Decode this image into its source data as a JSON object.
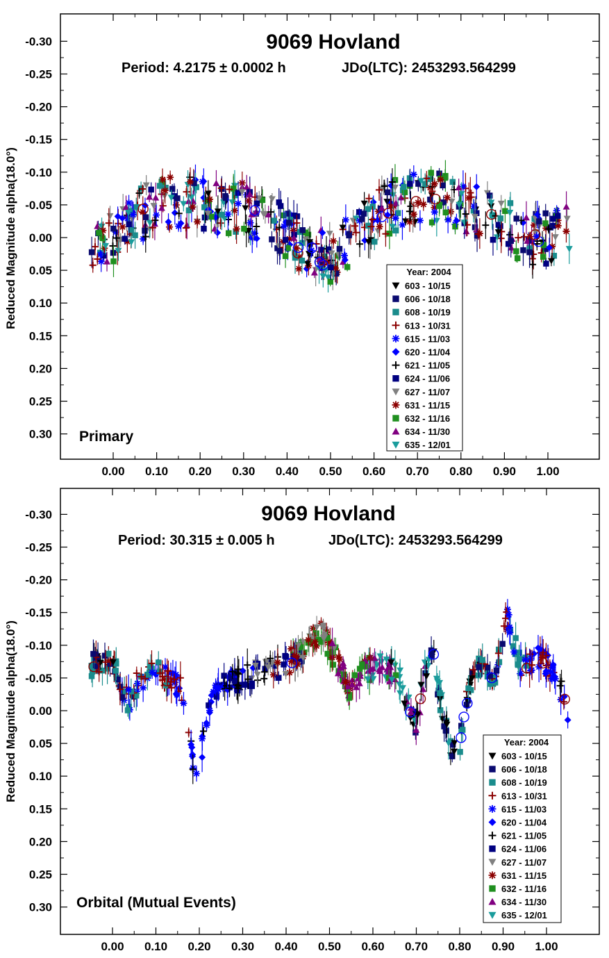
{
  "chart_data": [
    {
      "type": "scatter",
      "title": "9069 Hovland",
      "subtitle_left": "Period: 4.2175 ± 0.0002 h",
      "subtitle_right": "JDo(LTC): 2453293.564299",
      "xlabel": "",
      "ylabel": "Reduced Magnitude alpha(18.0°)",
      "annotation": "Primary",
      "xlim": [
        -0.12,
        1.12
      ],
      "ylim": [
        -0.345,
        0.34
      ],
      "y_inverted": true,
      "grid": false,
      "x_ticks": [
        "0.00",
        "0.10",
        "0.20",
        "0.30",
        "0.40",
        "0.50",
        "0.60",
        "0.70",
        "0.80",
        "0.90",
        "1.00"
      ],
      "y_ticks": [
        "-0.30",
        "-0.25",
        "-0.20",
        "-0.15",
        "-0.10",
        "-0.05",
        "0.00",
        "0.05",
        "0.10",
        "0.15",
        "0.20",
        "0.25",
        "0.30"
      ],
      "legend_placement": "bottom-right",
      "legend_title": "Year: 2004",
      "curve_points": [
        [
          -0.05,
          0.02
        ],
        [
          0.0,
          0.0
        ],
        [
          0.05,
          -0.03
        ],
        [
          0.1,
          -0.05
        ],
        [
          0.15,
          -0.055
        ],
        [
          0.2,
          -0.05
        ],
        [
          0.25,
          -0.045
        ],
        [
          0.3,
          -0.045
        ],
        [
          0.35,
          -0.03
        ],
        [
          0.4,
          -0.005
        ],
        [
          0.45,
          0.02
        ],
        [
          0.5,
          0.03
        ],
        [
          0.55,
          0.005
        ],
        [
          0.6,
          -0.03
        ],
        [
          0.65,
          -0.05
        ],
        [
          0.7,
          -0.06
        ],
        [
          0.75,
          -0.06
        ],
        [
          0.8,
          -0.05
        ],
        [
          0.85,
          -0.04
        ],
        [
          0.9,
          -0.02
        ],
        [
          0.95,
          0.005
        ],
        [
          1.0,
          0.0
        ],
        [
          1.05,
          -0.02
        ]
      ],
      "series": [
        {
          "name": "603 - 10/15",
          "color": "#000000",
          "marker": "tri-down"
        },
        {
          "name": "606 - 10/18",
          "color": "#0a0a70",
          "marker": "square"
        },
        {
          "name": "608 - 10/19",
          "color": "#1a8c8c",
          "marker": "square"
        },
        {
          "name": "613 - 10/31",
          "color": "#8b0000",
          "marker": "plus"
        },
        {
          "name": "615 - 11/03",
          "color": "#0000ff",
          "marker": "asterisk"
        },
        {
          "name": "620 - 11/04",
          "color": "#0000ff",
          "marker": "diamond"
        },
        {
          "name": "621 - 11/05",
          "color": "#000000",
          "marker": "plus"
        },
        {
          "name": "624 - 11/06",
          "color": "#000080",
          "marker": "square"
        },
        {
          "name": "627 - 11/07",
          "color": "#808080",
          "marker": "tri-down"
        },
        {
          "name": "631 - 11/15",
          "color": "#8b0000",
          "marker": "asterisk"
        },
        {
          "name": "632 - 11/16",
          "color": "#1f8f1f",
          "marker": "square"
        },
        {
          "name": "634 - 11/30",
          "color": "#800080",
          "marker": "tri-up"
        },
        {
          "name": "635 - 12/01",
          "color": "#1a9c9c",
          "marker": "tri-down"
        }
      ]
    },
    {
      "type": "scatter",
      "title": "9069 Hovland",
      "subtitle_left": "Period: 30.315 ± 0.005 h",
      "subtitle_right": "JDo(LTC): 2453293.564299",
      "xlabel": "",
      "ylabel": "Reduced Magnitude alpha(18.0°)",
      "annotation": "Orbital (Mutual Events)",
      "xlim": [
        -0.12,
        1.12
      ],
      "ylim": [
        -0.345,
        0.34
      ],
      "y_inverted": true,
      "grid": false,
      "x_ticks": [
        "0.00",
        "0.10",
        "0.20",
        "0.30",
        "0.40",
        "0.50",
        "0.60",
        "0.70",
        "0.80",
        "0.90",
        "1.00"
      ],
      "y_ticks": [
        "-0.30",
        "-0.25",
        "-0.20",
        "-0.15",
        "-0.10",
        "-0.05",
        "0.00",
        "0.05",
        "0.10",
        "0.15",
        "0.20",
        "0.25",
        "0.30"
      ],
      "legend_placement": "bottom-right",
      "legend_title": "Year: 2004",
      "curve_points": [
        [
          -0.05,
          -0.07
        ],
        [
          0.0,
          -0.07
        ],
        [
          0.02,
          -0.04
        ],
        [
          0.04,
          -0.01
        ],
        [
          0.06,
          -0.05
        ],
        [
          0.1,
          -0.06
        ],
        [
          0.14,
          -0.05
        ],
        [
          0.16,
          -0.03
        ],
        [
          0.18,
          0.05
        ],
        [
          0.19,
          0.13
        ],
        [
          0.2,
          0.08
        ],
        [
          0.22,
          0.0
        ],
        [
          0.25,
          -0.04
        ],
        [
          0.3,
          -0.05
        ],
        [
          0.35,
          -0.06
        ],
        [
          0.4,
          -0.07
        ],
        [
          0.45,
          -0.1
        ],
        [
          0.48,
          -0.12
        ],
        [
          0.5,
          -0.1
        ],
        [
          0.55,
          -0.03
        ],
        [
          0.58,
          -0.06
        ],
        [
          0.62,
          -0.07
        ],
        [
          0.66,
          -0.05
        ],
        [
          0.68,
          -0.01
        ],
        [
          0.7,
          0.02
        ],
        [
          0.72,
          -0.06
        ],
        [
          0.74,
          -0.08
        ],
        [
          0.76,
          0.0
        ],
        [
          0.78,
          0.06
        ],
        [
          0.8,
          0.05
        ],
        [
          0.82,
          -0.03
        ],
        [
          0.85,
          -0.07
        ],
        [
          0.88,
          -0.05
        ],
        [
          0.91,
          -0.14
        ],
        [
          0.94,
          -0.07
        ],
        [
          0.98,
          -0.08
        ],
        [
          1.0,
          -0.07
        ],
        [
          1.03,
          -0.04
        ],
        [
          1.05,
          0.0
        ]
      ],
      "series": [
        {
          "name": "603 - 10/15",
          "color": "#000000",
          "marker": "tri-down"
        },
        {
          "name": "606 - 10/18",
          "color": "#0a0a70",
          "marker": "square"
        },
        {
          "name": "608 - 10/19",
          "color": "#1a8c8c",
          "marker": "square"
        },
        {
          "name": "613 - 10/31",
          "color": "#8b0000",
          "marker": "plus"
        },
        {
          "name": "615 - 11/03",
          "color": "#0000ff",
          "marker": "asterisk"
        },
        {
          "name": "620 - 11/04",
          "color": "#0000ff",
          "marker": "diamond"
        },
        {
          "name": "621 - 11/05",
          "color": "#000000",
          "marker": "plus"
        },
        {
          "name": "624 - 11/06",
          "color": "#000080",
          "marker": "square"
        },
        {
          "name": "627 - 11/07",
          "color": "#808080",
          "marker": "tri-down"
        },
        {
          "name": "631 - 11/15",
          "color": "#8b0000",
          "marker": "asterisk"
        },
        {
          "name": "632 - 11/16",
          "color": "#1f8f1f",
          "marker": "square"
        },
        {
          "name": "634 - 11/30",
          "color": "#800080",
          "marker": "tri-up"
        },
        {
          "name": "635 - 12/01",
          "color": "#1a9c9c",
          "marker": "tri-down"
        }
      ]
    }
  ]
}
